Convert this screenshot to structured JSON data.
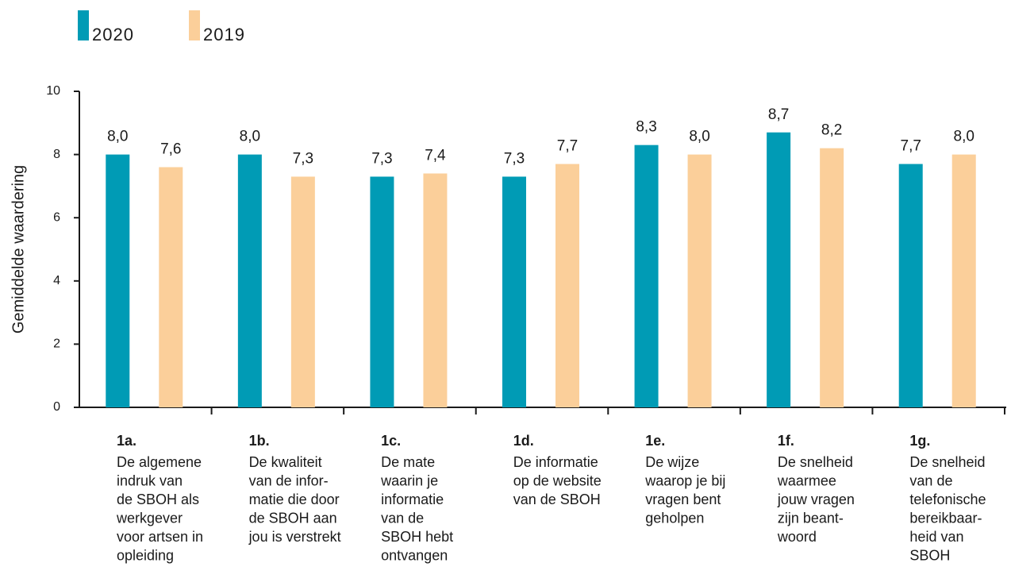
{
  "chart_data": {
    "type": "bar",
    "ylabel": "Gemiddelde waardering",
    "categories": [
      "1a.",
      "1b.",
      "1c.",
      "1d.",
      "1e.",
      "1f.",
      "1g."
    ],
    "category_descriptions": [
      [
        "De algemene",
        "indruk van",
        "de SBOH als",
        "werkgever",
        "voor artsen in",
        "opleiding"
      ],
      [
        "De kwaliteit",
        "van de infor-",
        "matie die door",
        "de SBOH aan",
        "jou is verstrekt"
      ],
      [
        "De mate",
        "waarin je",
        "informatie",
        "van de",
        "SBOH hebt",
        "ontvangen"
      ],
      [
        "De informatie",
        "op de website",
        "van de SBOH"
      ],
      [
        "De wijze",
        "waarop je bij",
        "vragen bent",
        "geholpen"
      ],
      [
        "De snelheid",
        "waarmee",
        "jouw vragen",
        "zijn beant-",
        "woord"
      ],
      [
        "De snelheid",
        "van de",
        "telefonische",
        "bereikbaar-",
        "heid van",
        "SBOH"
      ]
    ],
    "series": [
      {
        "name": "2020",
        "color": "#009bb5",
        "values": [
          8.0,
          8.0,
          7.3,
          7.3,
          8.3,
          8.7,
          7.7
        ],
        "value_labels": [
          "8,0",
          "8,0",
          "7,3",
          "7,3",
          "8,3",
          "8,7",
          "7,7"
        ]
      },
      {
        "name": "2019",
        "color": "#fbcf9a",
        "values": [
          7.6,
          7.3,
          7.4,
          7.7,
          8.0,
          8.2,
          8.0
        ],
        "value_labels": [
          "7,6",
          "7,3",
          "7,4",
          "7,7",
          "8,0",
          "8,2",
          "8,0"
        ]
      }
    ],
    "ylim": [
      0,
      10
    ],
    "yticks": [
      0,
      2,
      4,
      6,
      8,
      10
    ],
    "legend": "top-left"
  }
}
